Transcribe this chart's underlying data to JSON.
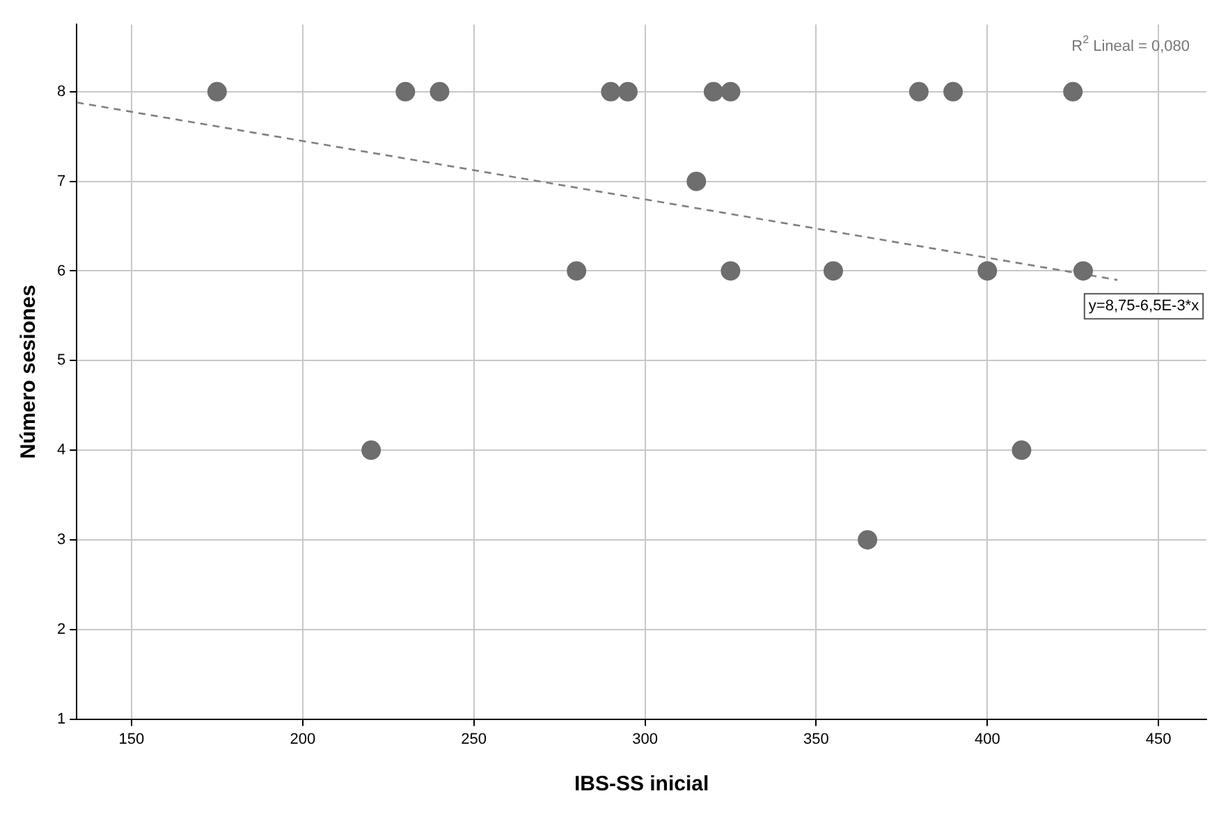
{
  "chart_data": {
    "type": "scatter",
    "xlabel": "IBS-SS inicial",
    "ylabel": "Número sesiones",
    "xlim": [
      134,
      464
    ],
    "ylim": [
      1,
      8.75
    ],
    "xticks": [
      150,
      200,
      250,
      300,
      350,
      400,
      450
    ],
    "yticks": [
      1,
      2,
      3,
      4,
      5,
      6,
      7,
      8
    ],
    "grid": true,
    "legend": false,
    "marker": "circle",
    "series": [
      {
        "type": "scatter",
        "color": "#6e6e6e",
        "x": [
          175,
          230,
          240,
          290,
          295,
          320,
          325,
          380,
          390,
          425,
          315,
          280,
          325,
          355,
          400,
          428,
          220,
          410,
          365
        ],
        "values": [
          8,
          8,
          8,
          8,
          8,
          8,
          8,
          8,
          8,
          8,
          7,
          6,
          6,
          6,
          6,
          6,
          4,
          4,
          3
        ]
      },
      {
        "type": "line",
        "color": "#808080",
        "line_style": "dashed",
        "marker": "none",
        "x": [
          134,
          438
        ],
        "values": [
          7.88,
          5.9
        ]
      }
    ],
    "annotations": [
      "R$^{2}$ Lineal = 0,080",
      {
        "text": "y=8,75-6,5E-3*x",
        "x": 430,
        "y": 5.9
      }
    ]
  }
}
